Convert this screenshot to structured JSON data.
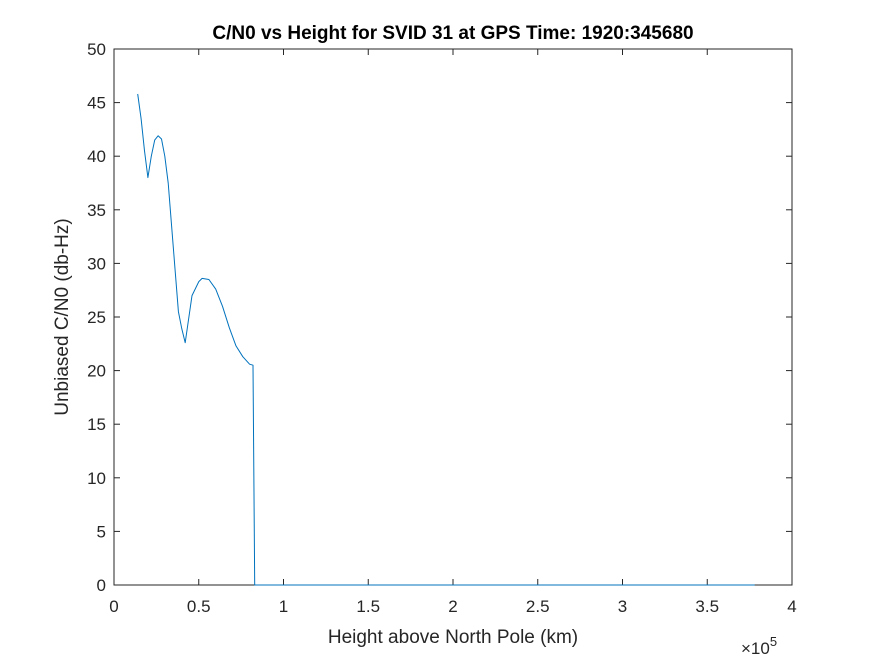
{
  "chart_data": {
    "type": "line",
    "title": "C/N0 vs Height for SVID 31 at GPS Time: 1920:345680",
    "xlabel": "Height above North Pole (km)",
    "ylabel": "Unbiased C/N0 (db-Hz)",
    "x_exponent_label": {
      "base": "×10",
      "exp": "5"
    },
    "xlim": [
      0,
      4
    ],
    "ylim": [
      0,
      50
    ],
    "x_ticks": [
      0,
      0.5,
      1,
      1.5,
      2,
      2.5,
      3,
      3.5,
      4
    ],
    "x_tick_labels": [
      "0",
      "0.5",
      "1",
      "1.5",
      "2",
      "2.5",
      "3",
      "3.5",
      "4"
    ],
    "y_ticks": [
      0,
      5,
      10,
      15,
      20,
      25,
      30,
      35,
      40,
      45,
      50
    ],
    "y_tick_labels": [
      "0",
      "5",
      "10",
      "15",
      "20",
      "25",
      "30",
      "35",
      "40",
      "45",
      "50"
    ],
    "grid": false,
    "line_color": "#0072BD",
    "series": [
      {
        "x": [
          0.14,
          0.16,
          0.18,
          0.2,
          0.22,
          0.24,
          0.26,
          0.28,
          0.3,
          0.32,
          0.34,
          0.36,
          0.38,
          0.4,
          0.42,
          0.46,
          0.5,
          0.52,
          0.56,
          0.6,
          0.64,
          0.68,
          0.72,
          0.76,
          0.8,
          0.82,
          0.83,
          0.85,
          1.0,
          1.5,
          2.0,
          2.5,
          3.0,
          3.5,
          3.78
        ],
        "y": [
          45.8,
          43.5,
          40.5,
          38.0,
          40.0,
          41.5,
          41.9,
          41.6,
          40.0,
          37.5,
          33.5,
          29.5,
          25.5,
          23.9,
          22.6,
          27.0,
          28.3,
          28.6,
          28.5,
          27.6,
          26.0,
          24.0,
          22.3,
          21.3,
          20.6,
          20.5,
          0.0,
          0.0,
          0.0,
          0.0,
          0.0,
          0.0,
          0.0,
          0.0,
          0.0
        ]
      }
    ]
  }
}
